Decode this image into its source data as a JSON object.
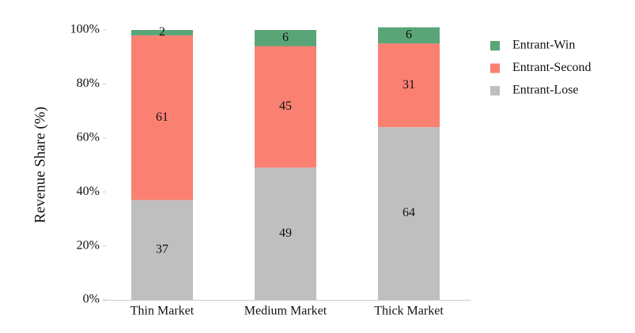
{
  "chart_data": {
    "type": "stacked_bar",
    "y_label": "Revenue Share (%)",
    "categories": [
      "Thin Market",
      "Medium Market",
      "Thick Market"
    ],
    "series": [
      {
        "name": "Entrant-Lose",
        "color": "#bfbfbf",
        "values": [
          37,
          49,
          64
        ]
      },
      {
        "name": "Entrant-Second",
        "color": "#fa8072",
        "values": [
          61,
          45,
          31
        ]
      },
      {
        "name": "Entrant-Win",
        "color": "#5aa577",
        "values": [
          2,
          6,
          6
        ]
      }
    ],
    "ylim": [
      0,
      100
    ],
    "yticks": [
      {
        "value": 0,
        "label": "0%"
      },
      {
        "value": 20,
        "label": "20%"
      },
      {
        "value": 40,
        "label": "40%"
      },
      {
        "value": 60,
        "label": "60%"
      },
      {
        "value": 80,
        "label": "80%"
      },
      {
        "value": 100,
        "label": "100%"
      }
    ],
    "legend": "right"
  }
}
